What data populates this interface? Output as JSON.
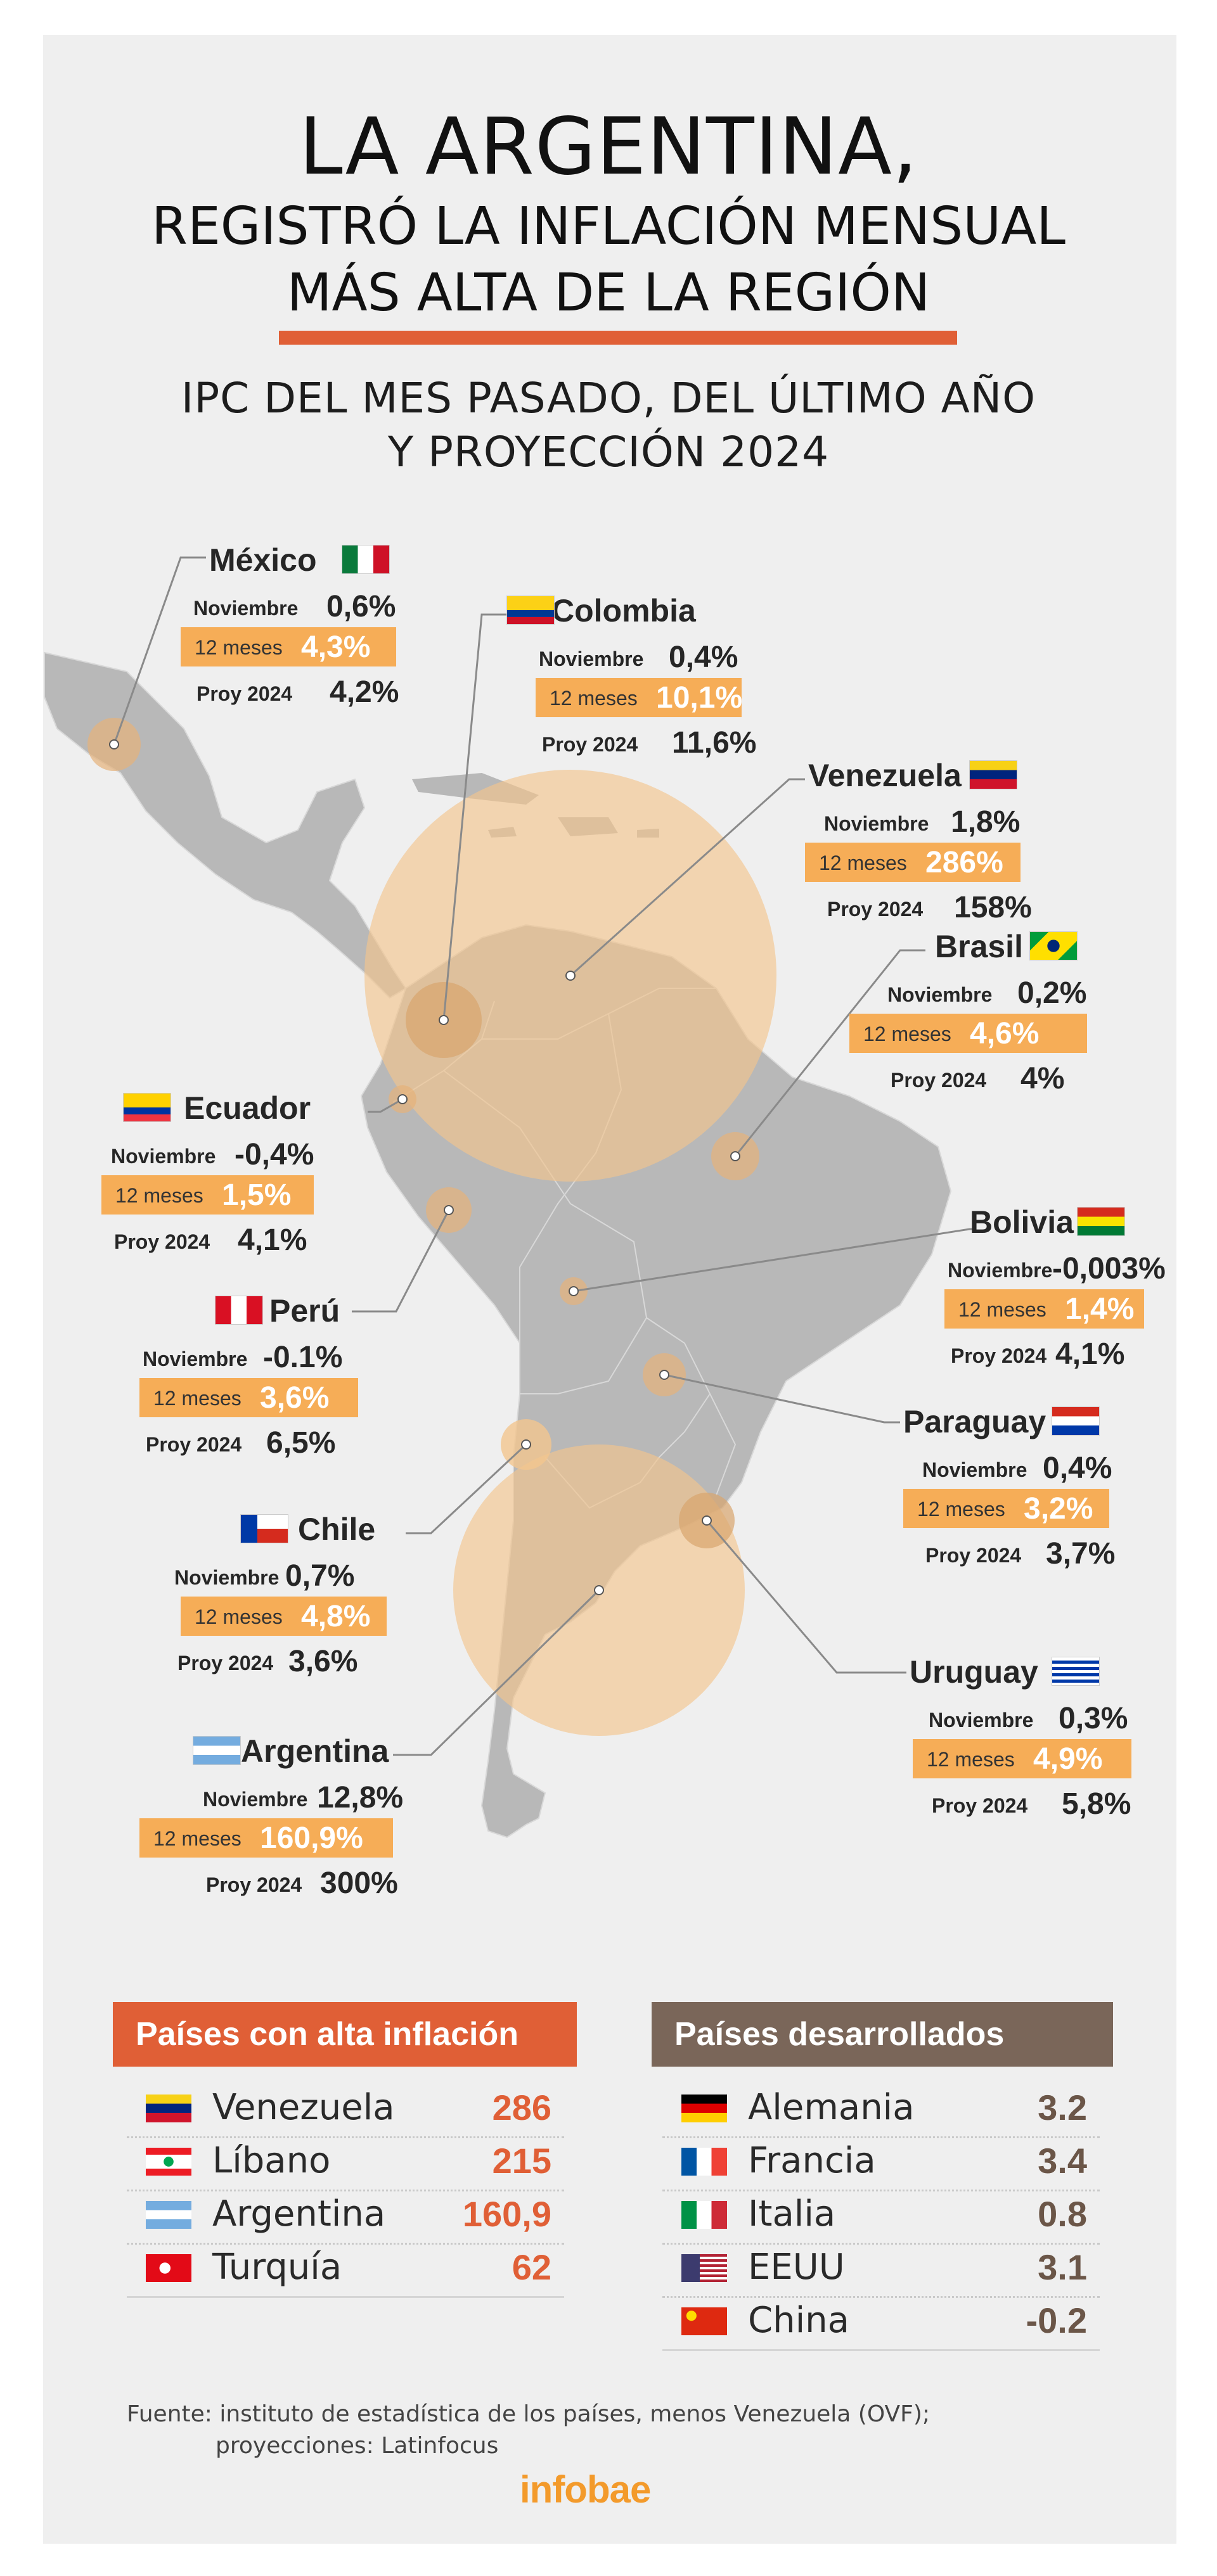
{
  "header": {
    "title_line1": "LA ARGENTINA,",
    "title_line2": "REGISTRÓ LA INFLACIÓN MENSUAL",
    "title_line3": "MÁS ALTA DE LA REGIÓN",
    "subtitle_line1": "IPC DEL MES PASADO, DEL ÚLTIMO AÑO",
    "subtitle_line2": "Y PROYECCIÓN 2024"
  },
  "labels": {
    "month": "Noviembre",
    "year": "12 meses",
    "proj": "Proy 2024"
  },
  "colors": {
    "accent_orange": "#e05f36",
    "highlight": "#f6ad57",
    "map_land": "#b8b8b8",
    "bubble": "#f2c58e",
    "developed_header": "#7a6659"
  },
  "countries": [
    {
      "id": "mexico",
      "name": "México",
      "flag_icon": "mexico-flag-icon",
      "noviembre": "0,6%",
      "doce_meses": "4,3%",
      "proy": "4,2%"
    },
    {
      "id": "colombia",
      "name": "Colombia",
      "flag_icon": "colombia-flag-icon",
      "noviembre": "0,4%",
      "doce_meses": "10,1%",
      "proy": "11,6%"
    },
    {
      "id": "venezuela",
      "name": "Venezuela",
      "flag_icon": "venezuela-flag-icon",
      "noviembre": "1,8%",
      "doce_meses": "286%",
      "proy": "158%"
    },
    {
      "id": "brasil",
      "name": "Brasil",
      "flag_icon": "brazil-flag-icon",
      "noviembre": "0,2%",
      "doce_meses": "4,6%",
      "proy": "4%"
    },
    {
      "id": "ecuador",
      "name": "Ecuador",
      "flag_icon": "ecuador-flag-icon",
      "noviembre": "-0,4%",
      "doce_meses": "1,5%",
      "proy": "4,1%"
    },
    {
      "id": "bolivia",
      "name": "Bolivia",
      "flag_icon": "bolivia-flag-icon",
      "noviembre": "-0,003%",
      "doce_meses": "1,4%",
      "proy": "4,1%"
    },
    {
      "id": "peru",
      "name": "Perú",
      "flag_icon": "peru-flag-icon",
      "noviembre": "-0.1%",
      "doce_meses": "3,6%",
      "proy": "6,5%"
    },
    {
      "id": "paraguay",
      "name": "Paraguay",
      "flag_icon": "paraguay-flag-icon",
      "noviembre": "0,4%",
      "doce_meses": "3,2%",
      "proy": "3,7%"
    },
    {
      "id": "chile",
      "name": "Chile",
      "flag_icon": "chile-flag-icon",
      "noviembre": "0,7%",
      "doce_meses": "4,8%",
      "proy": "3,6%"
    },
    {
      "id": "uruguay",
      "name": "Uruguay",
      "flag_icon": "uruguay-flag-icon",
      "noviembre": "0,3%",
      "doce_meses": "4,9%",
      "proy": "5,8%"
    },
    {
      "id": "argentina",
      "name": "Argentina",
      "flag_icon": "argentina-flag-icon",
      "noviembre": "12,8%",
      "doce_meses": "160,9%",
      "proy": "300%"
    }
  ],
  "high_inflation": {
    "title": "Países con alta inflación",
    "rows": [
      {
        "name": "Venezuela",
        "value": "286",
        "flag_icon": "venezuela-flag-icon"
      },
      {
        "name": "Líbano",
        "value": "215",
        "flag_icon": "lebanon-flag-icon"
      },
      {
        "name": "Argentina",
        "value": "160,9",
        "flag_icon": "argentina-flag-icon"
      },
      {
        "name": "Turquía",
        "value": "62",
        "flag_icon": "turkey-flag-icon"
      }
    ]
  },
  "developed": {
    "title": "Países desarrollados",
    "rows": [
      {
        "name": "Alemania",
        "value": "3.2",
        "flag_icon": "germany-flag-icon"
      },
      {
        "name": "Francia",
        "value": "3.4",
        "flag_icon": "france-flag-icon"
      },
      {
        "name": "Italia",
        "value": "0.8",
        "flag_icon": "italy-flag-icon"
      },
      {
        "name": "EEUU",
        "value": "3.1",
        "flag_icon": "usa-flag-icon"
      },
      {
        "name": "China",
        "value": "-0.2",
        "flag_icon": "china-flag-icon"
      }
    ]
  },
  "footer": {
    "source_line1": "Fuente: instituto de estadística de los países, menos Venezuela (OVF);",
    "source_line2": "proyecciones: Latinfocus",
    "logo": "infobae"
  }
}
